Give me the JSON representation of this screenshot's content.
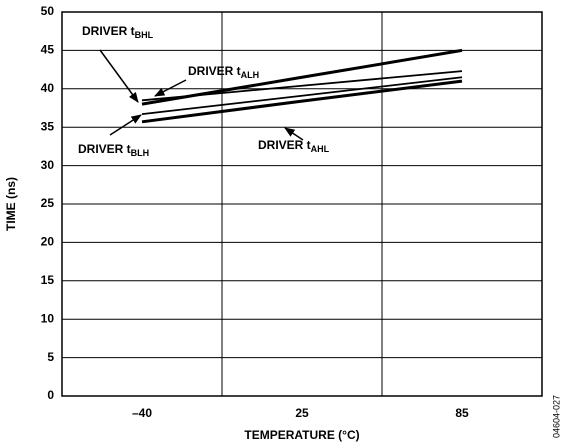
{
  "chart_data": {
    "type": "line",
    "x_label": "TEMPERATURE (°C)",
    "y_label": "TIME (ns)",
    "note": "04604-027",
    "categories": [
      "–40",
      "25",
      "85"
    ],
    "series": [
      {
        "name": "DRIVER tBHL",
        "color": "#000",
        "width": "thick",
        "values": [
          38.0,
          41.5,
          45.0
        ]
      },
      {
        "name": "DRIVER tALH",
        "color": "#000",
        "width": "thin",
        "values": [
          38.5,
          40.4,
          42.3
        ]
      },
      {
        "name": "DRIVER tBLH",
        "color": "#000",
        "width": "thin",
        "values": [
          36.7,
          39.1,
          41.5
        ]
      },
      {
        "name": "DRIVER tAHL",
        "color": "#000",
        "width": "thick",
        "values": [
          35.7,
          38.4,
          41.0
        ]
      }
    ],
    "ylim": [
      0,
      50
    ],
    "yticks": [
      0,
      5,
      10,
      15,
      20,
      25,
      30,
      35,
      40,
      45,
      50
    ],
    "grid": true
  }
}
